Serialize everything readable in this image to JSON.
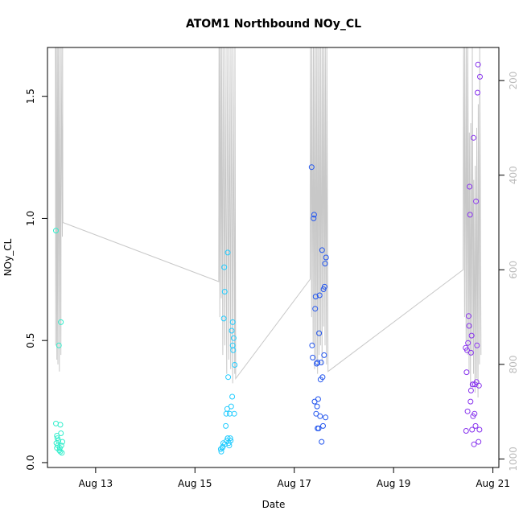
{
  "chart_data": {
    "type": "scatter",
    "title": "ATOM1 Northbound NOy_CL",
    "xlabel": "Date",
    "ylabel": "NOy_CL",
    "x_ticks": [
      {
        "x": 13,
        "label": "Aug 13"
      },
      {
        "x": 15,
        "label": "Aug 15"
      },
      {
        "x": 17,
        "label": "Aug 17"
      },
      {
        "x": 19,
        "label": "Aug 19"
      },
      {
        "x": 21,
        "label": "Aug 21"
      }
    ],
    "y_ticks": [
      {
        "y": 0.0,
        "label": "0.0"
      },
      {
        "y": 0.5,
        "label": "0.5"
      },
      {
        "y": 1.0,
        "label": "1.0"
      },
      {
        "y": 1.5,
        "label": "1.5"
      }
    ],
    "y2_ticks": [
      {
        "y": 200,
        "label": "200"
      },
      {
        "y": 400,
        "label": "400"
      },
      {
        "y": 600,
        "label": "600"
      },
      {
        "y": 800,
        "label": "800"
      },
      {
        "y": 1000,
        "label": "1000"
      }
    ],
    "xlim": [
      12.03,
      21.12
    ],
    "ylim": [
      -0.02,
      1.7
    ],
    "y2lim": [
      1018,
      130
    ],
    "grid": false,
    "series": [
      {
        "color": "#33eecc",
        "points": [
          [
            12.2,
            0.95
          ],
          [
            12.2,
            0.16
          ],
          [
            12.22,
            0.11
          ],
          [
            12.21,
            0.08
          ],
          [
            12.22,
            0.06
          ],
          [
            12.23,
            0.1
          ],
          [
            12.25,
            0.09
          ],
          [
            12.26,
            0.48
          ],
          [
            12.27,
            0.05
          ],
          [
            12.28,
            0.06
          ],
          [
            12.29,
            0.155
          ],
          [
            12.3,
            0.575
          ],
          [
            12.3,
            0.12
          ],
          [
            12.31,
            0.07
          ],
          [
            12.32,
            0.04
          ],
          [
            12.33,
            0.085
          ],
          [
            12.24,
            0.07
          ],
          [
            12.29,
            0.045
          ]
        ]
      },
      {
        "color": "#22ccff",
        "points": [
          [
            15.52,
            0.055
          ],
          [
            15.53,
            0.045
          ],
          [
            15.55,
            0.06
          ],
          [
            15.56,
            0.065
          ],
          [
            15.57,
            0.08
          ],
          [
            15.58,
            0.59
          ],
          [
            15.59,
            0.8
          ],
          [
            15.6,
            0.7
          ],
          [
            15.62,
            0.15
          ],
          [
            15.63,
            0.2
          ],
          [
            15.65,
            0.22
          ],
          [
            15.66,
            0.86
          ],
          [
            15.67,
            0.35
          ],
          [
            15.68,
            0.08
          ],
          [
            15.69,
            0.07
          ],
          [
            15.7,
            0.2
          ],
          [
            15.71,
            0.1
          ],
          [
            15.72,
            0.09
          ],
          [
            15.73,
            0.23
          ],
          [
            15.74,
            0.54
          ],
          [
            15.75,
            0.27
          ],
          [
            15.76,
            0.575
          ],
          [
            15.76,
            0.48
          ],
          [
            15.77,
            0.46
          ],
          [
            15.78,
            0.51
          ],
          [
            15.79,
            0.2
          ],
          [
            15.8,
            0.4
          ],
          [
            15.6,
            0.075
          ],
          [
            15.64,
            0.09
          ],
          [
            15.66,
            0.1
          ]
        ]
      },
      {
        "color": "#2255ee",
        "points": [
          [
            17.35,
            1.21
          ],
          [
            17.36,
            0.48
          ],
          [
            17.37,
            0.43
          ],
          [
            17.39,
            1.0
          ],
          [
            17.4,
            1.015
          ],
          [
            17.41,
            0.25
          ],
          [
            17.42,
            0.63
          ],
          [
            17.43,
            0.68
          ],
          [
            17.44,
            0.2
          ],
          [
            17.45,
            0.405
          ],
          [
            17.46,
            0.23
          ],
          [
            17.47,
            0.41
          ],
          [
            17.48,
            0.26
          ],
          [
            17.49,
            0.14
          ],
          [
            17.5,
            0.53
          ],
          [
            17.51,
            0.685
          ],
          [
            17.52,
            0.19
          ],
          [
            17.53,
            0.34
          ],
          [
            17.54,
            0.41
          ],
          [
            17.55,
            0.085
          ],
          [
            17.56,
            0.87
          ],
          [
            17.57,
            0.35
          ],
          [
            17.58,
            0.15
          ],
          [
            17.59,
            0.71
          ],
          [
            17.6,
            0.44
          ],
          [
            17.61,
            0.72
          ],
          [
            17.62,
            0.815
          ],
          [
            17.63,
            0.185
          ],
          [
            17.64,
            0.84
          ],
          [
            17.47,
            0.14
          ]
        ]
      },
      {
        "color": "#8833ee",
        "points": [
          [
            20.45,
            0.47
          ],
          [
            20.46,
            0.13
          ],
          [
            20.47,
            0.37
          ],
          [
            20.48,
            0.46
          ],
          [
            20.49,
            0.21
          ],
          [
            20.5,
            0.49
          ],
          [
            20.51,
            0.6
          ],
          [
            20.52,
            0.56
          ],
          [
            20.53,
            1.13
          ],
          [
            20.54,
            1.015
          ],
          [
            20.55,
            0.25
          ],
          [
            20.56,
            0.295
          ],
          [
            20.57,
            0.52
          ],
          [
            20.58,
            0.135
          ],
          [
            20.59,
            0.32
          ],
          [
            20.6,
            0.19
          ],
          [
            20.61,
            1.33
          ],
          [
            20.62,
            0.075
          ],
          [
            20.63,
            0.2
          ],
          [
            20.64,
            0.32
          ],
          [
            20.65,
            0.15
          ],
          [
            20.66,
            1.07
          ],
          [
            20.67,
            0.33
          ],
          [
            20.68,
            0.48
          ],
          [
            20.69,
            1.515
          ],
          [
            20.7,
            1.63
          ],
          [
            20.71,
            0.085
          ],
          [
            20.72,
            0.315
          ],
          [
            20.73,
            0.135
          ],
          [
            20.74,
            1.58
          ],
          [
            20.56,
            0.45
          ],
          [
            20.6,
            0.32
          ]
        ]
      }
    ],
    "altitude_line": {
      "color": "#c8c8c8",
      "points": [
        [
          12.19,
          130
        ],
        [
          12.195,
          760
        ],
        [
          12.2,
          130
        ],
        [
          12.22,
          790
        ],
        [
          12.225,
          130
        ],
        [
          12.24,
          800
        ],
        [
          12.245,
          130
        ],
        [
          12.27,
          815
        ],
        [
          12.275,
          130
        ],
        [
          12.3,
          780
        ],
        [
          12.305,
          130
        ],
        [
          12.33,
          530
        ],
        [
          12.335,
          130
        ],
        [
          12.34,
          500
        ],
        [
          15.48,
          625
        ],
        [
          15.485,
          130
        ],
        [
          15.5,
          700
        ],
        [
          15.505,
          130
        ],
        [
          15.53,
          660
        ],
        [
          15.535,
          130
        ],
        [
          15.56,
          780
        ],
        [
          15.565,
          130
        ],
        [
          15.6,
          760
        ],
        [
          15.605,
          130
        ],
        [
          15.64,
          820
        ],
        [
          15.645,
          130
        ],
        [
          15.68,
          790
        ],
        [
          15.685,
          130
        ],
        [
          15.72,
          810
        ],
        [
          15.725,
          130
        ],
        [
          15.76,
          840
        ],
        [
          15.765,
          130
        ],
        [
          15.8,
          820
        ],
        [
          15.805,
          130
        ],
        [
          15.82,
          830
        ],
        [
          17.32,
          620
        ],
        [
          17.325,
          130
        ],
        [
          17.35,
          700
        ],
        [
          17.355,
          130
        ],
        [
          17.38,
          760
        ],
        [
          17.385,
          130
        ],
        [
          17.41,
          810
        ],
        [
          17.415,
          130
        ],
        [
          17.44,
          790
        ],
        [
          17.445,
          130
        ],
        [
          17.47,
          820
        ],
        [
          17.475,
          130
        ],
        [
          17.5,
          780
        ],
        [
          17.505,
          130
        ],
        [
          17.53,
          760
        ],
        [
          17.535,
          130
        ],
        [
          17.56,
          800
        ],
        [
          17.565,
          130
        ],
        [
          17.59,
          720
        ],
        [
          17.595,
          130
        ],
        [
          17.62,
          760
        ],
        [
          17.625,
          130
        ],
        [
          17.65,
          800
        ],
        [
          17.655,
          130
        ],
        [
          17.68,
          815
        ],
        [
          20.4,
          600
        ],
        [
          20.41,
          130
        ],
        [
          20.43,
          700
        ],
        [
          20.435,
          130
        ],
        [
          20.46,
          750
        ],
        [
          20.465,
          130
        ],
        [
          20.49,
          780
        ],
        [
          20.495,
          130
        ],
        [
          20.52,
          820
        ],
        [
          20.525,
          310
        ],
        [
          20.55,
          850
        ],
        [
          20.555,
          290
        ],
        [
          20.58,
          780
        ],
        [
          20.585,
          130
        ],
        [
          20.61,
          820
        ],
        [
          20.615,
          410
        ],
        [
          20.64,
          860
        ],
        [
          20.645,
          380
        ],
        [
          20.67,
          830
        ],
        [
          20.675,
          300
        ],
        [
          20.7,
          870
        ],
        [
          20.705,
          250
        ],
        [
          20.73,
          800
        ],
        [
          20.735,
          130
        ],
        [
          20.76,
          780
        ]
      ]
    }
  }
}
